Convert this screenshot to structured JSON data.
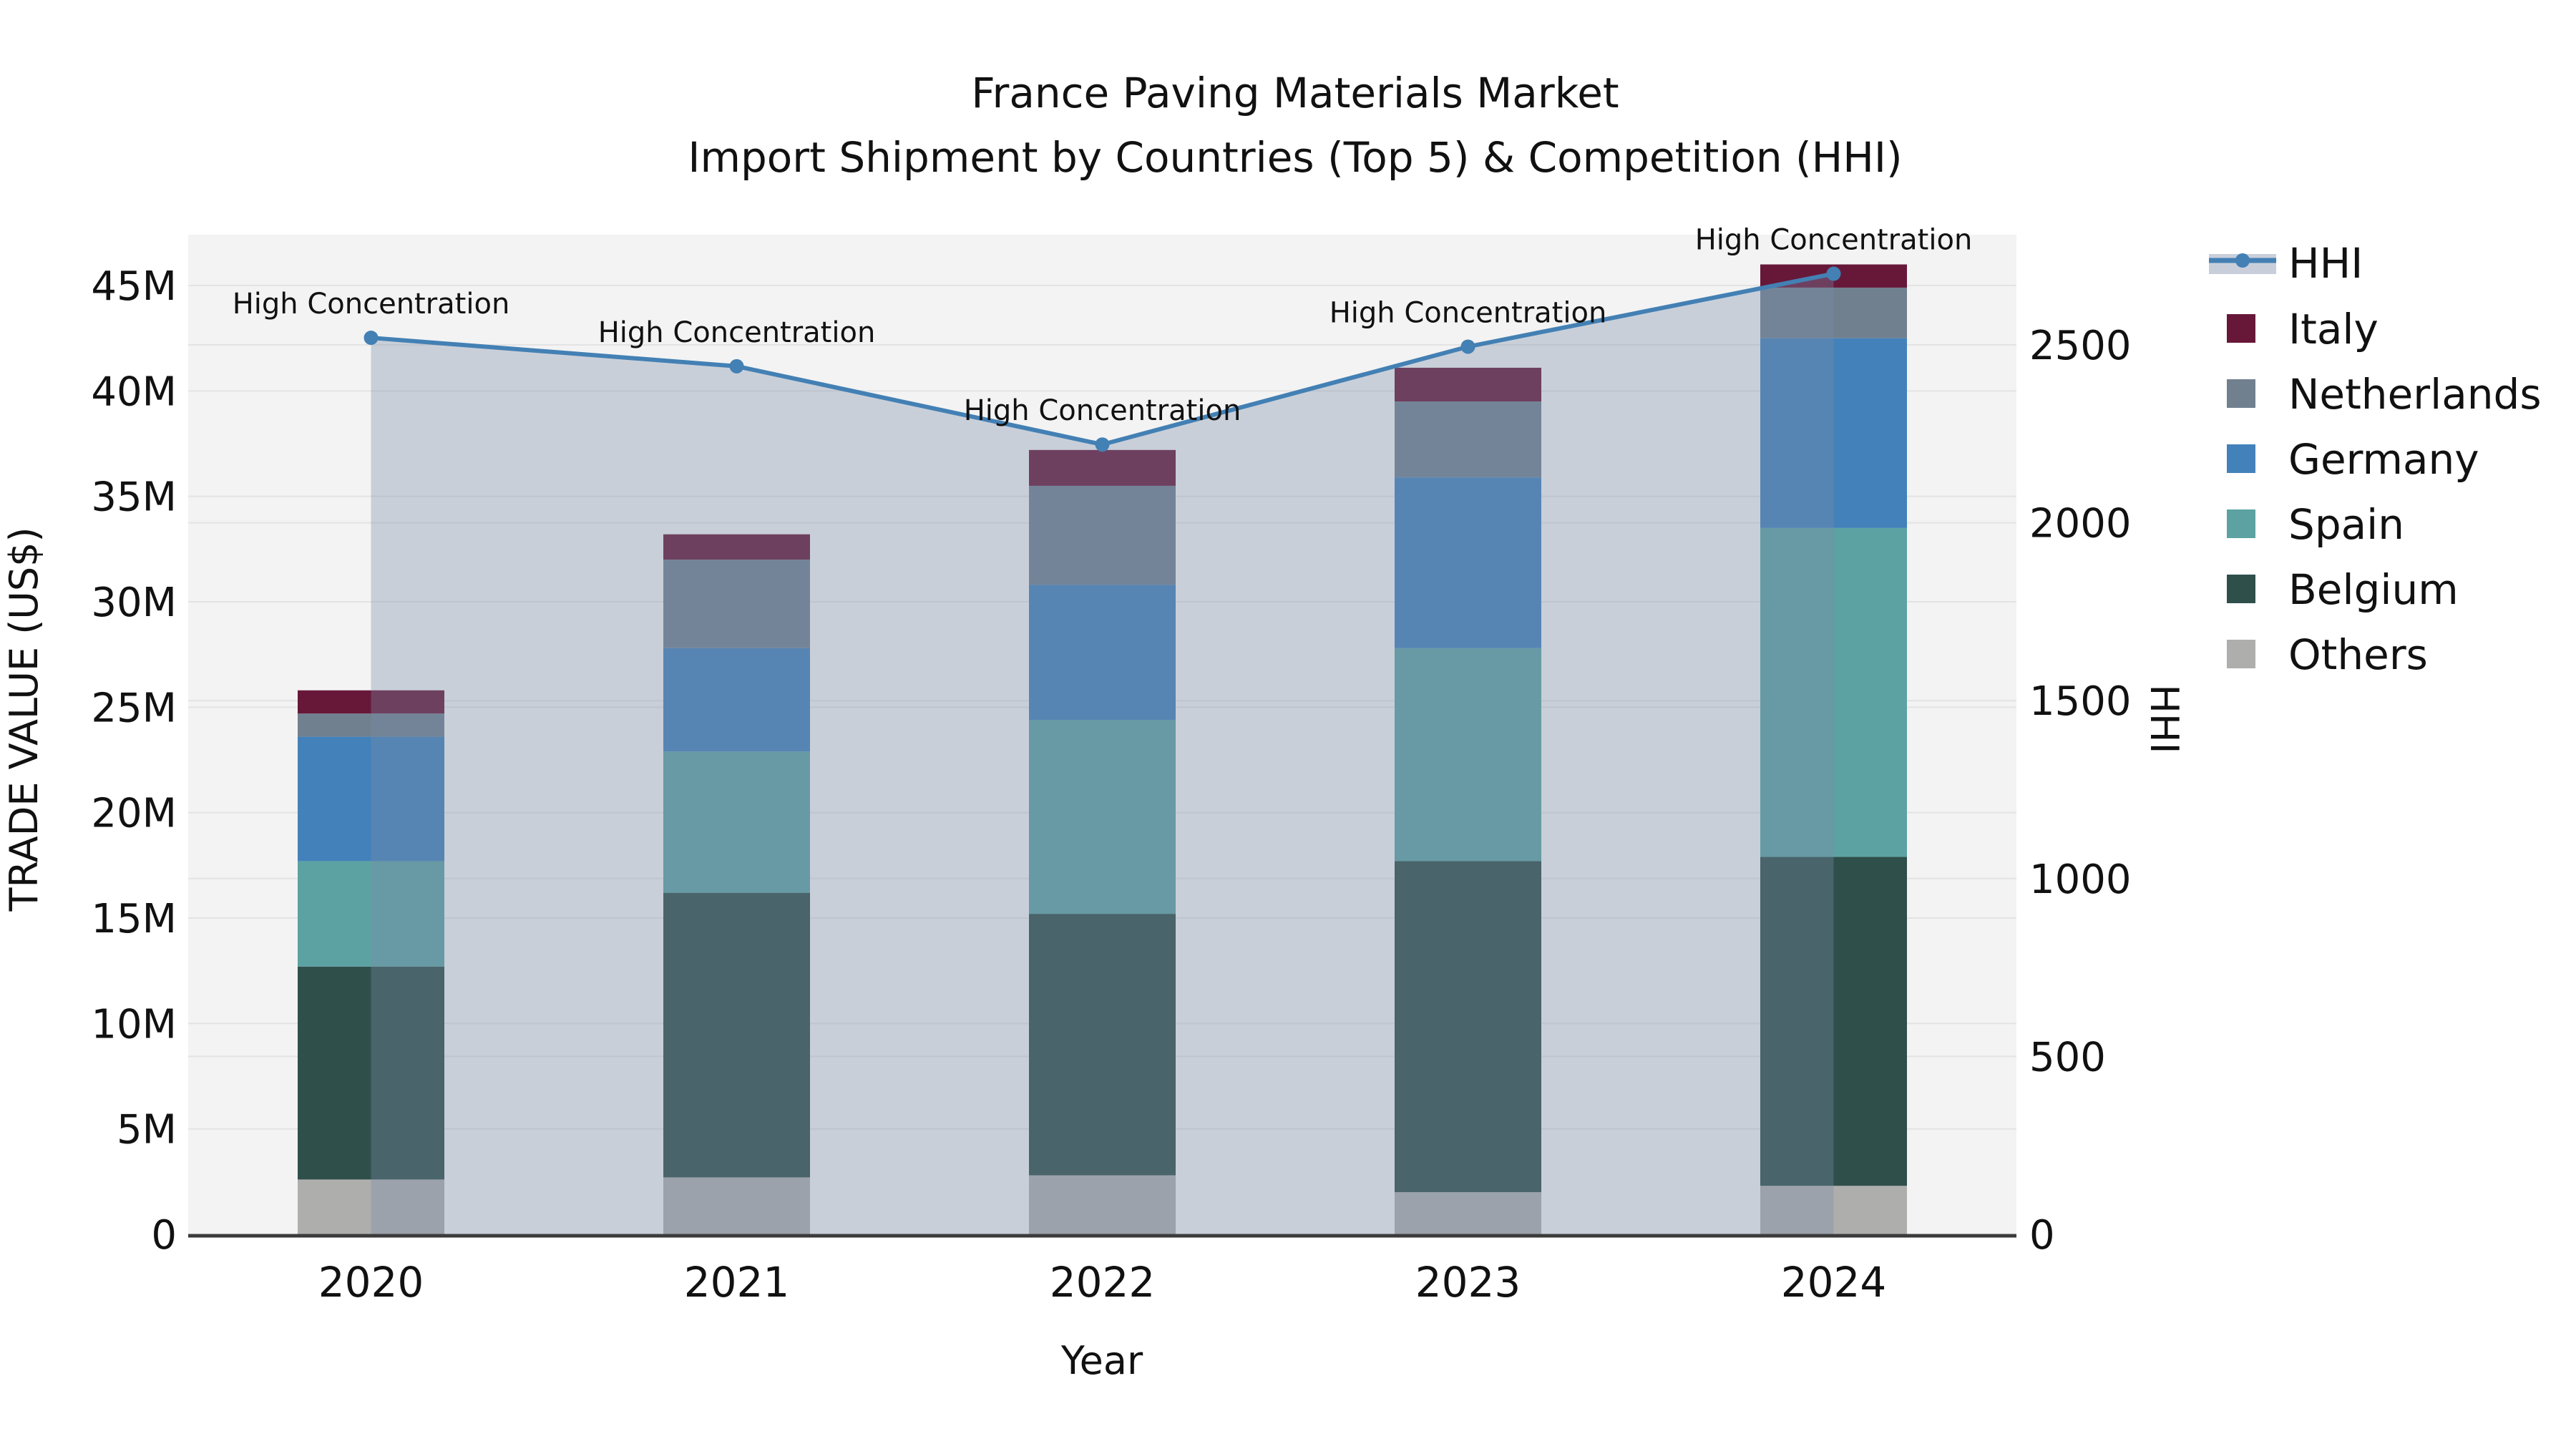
{
  "chart": {
    "title_line1": "France Paving Materials Market",
    "title_line2": "Import Shipment by Countries (Top 5) & Competition (HHI)",
    "x_axis_label": "Year",
    "y_left_label": "TRADE VALUE (US$)",
    "y_right_label": "HHI"
  },
  "legend": {
    "position": "right",
    "items": [
      {
        "label": "HHI",
        "type": "line",
        "color": "#4380B4",
        "band_color": "#C9CFDA"
      },
      {
        "label": "Italy",
        "type": "square",
        "color": "#671839"
      },
      {
        "label": "Netherlands",
        "type": "square",
        "color": "#71808F"
      },
      {
        "label": "Germany",
        "type": "square",
        "color": "#4381BB"
      },
      {
        "label": "Spain",
        "type": "square",
        "color": "#5CA2A2"
      },
      {
        "label": "Belgium",
        "type": "square",
        "color": "#2F4F4B"
      },
      {
        "label": "Others",
        "type": "square",
        "color": "#AEAEAC"
      }
    ]
  },
  "chart_data": {
    "type": "stacked-bar+line",
    "categories": [
      "2020",
      "2021",
      "2022",
      "2023",
      "2024"
    ],
    "unit_left": "USD millions",
    "series": [
      {
        "name": "Others",
        "color": "#AEAEAC",
        "values": [
          2.6,
          2.7,
          2.8,
          2.0,
          2.3
        ]
      },
      {
        "name": "Belgium",
        "color": "#2F4F4B",
        "values": [
          10.1,
          13.5,
          12.4,
          15.7,
          15.6
        ]
      },
      {
        "name": "Spain",
        "color": "#5CA2A2",
        "values": [
          5.0,
          6.7,
          9.2,
          10.1,
          15.6
        ]
      },
      {
        "name": "Germany",
        "color": "#4381BB",
        "values": [
          5.9,
          4.9,
          6.4,
          8.1,
          9.0
        ]
      },
      {
        "name": "Netherlands",
        "color": "#71808F",
        "values": [
          1.1,
          4.2,
          4.7,
          3.6,
          2.4
        ]
      },
      {
        "name": "Italy",
        "color": "#671839",
        "values": [
          1.1,
          1.2,
          1.7,
          1.6,
          1.1
        ]
      }
    ],
    "bar_totals_musd": [
      25.8,
      33.2,
      37.2,
      41.1,
      46.0
    ],
    "line": {
      "name": "HHI",
      "color": "#4380B4",
      "area_fill": "rgba(122,140,170,0.35)",
      "values": [
        2520,
        2440,
        2220,
        2495,
        2700
      ]
    },
    "annotations": [
      {
        "x": "2020",
        "text": "High Concentration"
      },
      {
        "x": "2021",
        "text": "High Concentration"
      },
      {
        "x": "2022",
        "text": "High Concentration"
      },
      {
        "x": "2023",
        "text": "High Concentration"
      },
      {
        "x": "2024",
        "text": "High Concentration"
      }
    ],
    "y_left": {
      "tick_labels": [
        "0",
        "5M",
        "10M",
        "15M",
        "20M",
        "25M",
        "30M",
        "35M",
        "40M",
        "45M"
      ],
      "tick_values": [
        0,
        5,
        10,
        15,
        20,
        25,
        30,
        35,
        40,
        45
      ],
      "range_musd": [
        0,
        47.5
      ]
    },
    "y_right": {
      "tick_labels": [
        "0",
        "500",
        "1000",
        "1500",
        "2000",
        "2500"
      ],
      "tick_values": [
        0,
        500,
        1000,
        1500,
        2000,
        2500
      ],
      "range": [
        0,
        2800
      ]
    },
    "grid": true,
    "legend_position": "right",
    "colors": {
      "plot_background": "#F3F3F3",
      "gridline": "#E3E3E3",
      "axis_line": "#3B3B3B",
      "text": "#111111"
    }
  }
}
